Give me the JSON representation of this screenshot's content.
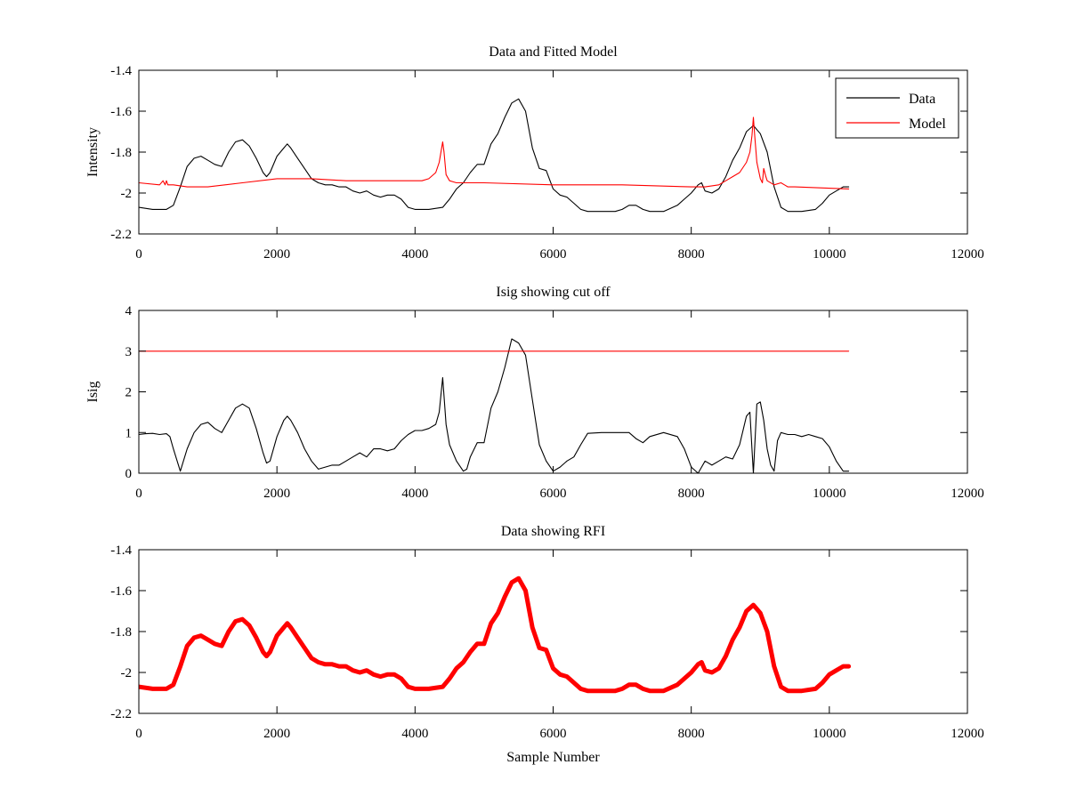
{
  "figure": {
    "background": "#ffffff"
  },
  "chart_data": [
    {
      "type": "line",
      "title": "Data and Fitted Model",
      "xlabel": "",
      "ylabel": "Intensity",
      "xlim": [
        0,
        12000
      ],
      "ylim": [
        -2.2,
        -1.4
      ],
      "xticks": [
        "0",
        "2000",
        "4000",
        "6000",
        "8000",
        "10000",
        "12000"
      ],
      "yticks": [
        "-1.4",
        "-1.6",
        "-1.8",
        "-2",
        "-2.2"
      ],
      "legend": {
        "placement": "top-right",
        "entries": [
          "Data",
          "Model"
        ]
      },
      "grid": false,
      "series": [
        {
          "name": "Data",
          "color": "#000000",
          "x": [
            0,
            200,
            400,
            500,
            600,
            700,
            800,
            900,
            1000,
            1100,
            1200,
            1300,
            1400,
            1500,
            1600,
            1700,
            1800,
            1850,
            1900,
            2000,
            2100,
            2150,
            2200,
            2300,
            2400,
            2500,
            2600,
            2700,
            2800,
            2900,
            3000,
            3100,
            3200,
            3300,
            3400,
            3500,
            3600,
            3700,
            3800,
            3900,
            4000,
            4200,
            4400,
            4500,
            4600,
            4700,
            4800,
            4900,
            5000,
            5100,
            5200,
            5300,
            5400,
            5500,
            5600,
            5700,
            5800,
            5900,
            6000,
            6100,
            6200,
            6300,
            6400,
            6500,
            6700,
            6900,
            7000,
            7100,
            7200,
            7300,
            7400,
            7600,
            7800,
            7900,
            8000,
            8100,
            8150,
            8200,
            8300,
            8400,
            8500,
            8600,
            8700,
            8800,
            8900,
            9000,
            9100,
            9200,
            9300,
            9400,
            9600,
            9800,
            9900,
            10000,
            10100,
            10200,
            10280
          ],
          "y": [
            -2.07,
            -2.08,
            -2.08,
            -2.06,
            -1.97,
            -1.87,
            -1.83,
            -1.82,
            -1.84,
            -1.86,
            -1.87,
            -1.8,
            -1.75,
            -1.74,
            -1.77,
            -1.83,
            -1.9,
            -1.92,
            -1.9,
            -1.82,
            -1.78,
            -1.76,
            -1.78,
            -1.83,
            -1.88,
            -1.93,
            -1.95,
            -1.96,
            -1.96,
            -1.97,
            -1.97,
            -1.99,
            -2.0,
            -1.99,
            -2.01,
            -2.02,
            -2.01,
            -2.01,
            -2.03,
            -2.07,
            -2.08,
            -2.08,
            -2.07,
            -2.03,
            -1.98,
            -1.95,
            -1.9,
            -1.86,
            -1.86,
            -1.76,
            -1.71,
            -1.63,
            -1.56,
            -1.54,
            -1.6,
            -1.78,
            -1.88,
            -1.89,
            -1.98,
            -2.01,
            -2.02,
            -2.05,
            -2.08,
            -2.09,
            -2.09,
            -2.09,
            -2.08,
            -2.06,
            -2.06,
            -2.08,
            -2.09,
            -2.09,
            -2.06,
            -2.03,
            -2.0,
            -1.96,
            -1.95,
            -1.99,
            -2.0,
            -1.98,
            -1.92,
            -1.84,
            -1.78,
            -1.7,
            -1.67,
            -1.71,
            -1.8,
            -1.97,
            -2.07,
            -2.09,
            -2.09,
            -2.08,
            -2.05,
            -2.01,
            -1.99,
            -1.97,
            -1.97
          ]
        },
        {
          "name": "Model",
          "color": "#ff0000",
          "x": [
            0,
            300,
            350,
            380,
            400,
            420,
            500,
            700,
            1000,
            1500,
            2000,
            2500,
            3000,
            3500,
            4000,
            4100,
            4200,
            4300,
            4350,
            4400,
            4420,
            4450,
            4500,
            4600,
            4700,
            4800,
            5000,
            6000,
            7000,
            8000,
            8200,
            8400,
            8500,
            8600,
            8700,
            8800,
            8850,
            8880,
            8900,
            8920,
            8950,
            9000,
            9030,
            9050,
            9080,
            9100,
            9200,
            9300,
            9350,
            9400,
            9500,
            10280
          ],
          "y": [
            -1.95,
            -1.96,
            -1.94,
            -1.96,
            -1.94,
            -1.96,
            -1.96,
            -1.97,
            -1.97,
            -1.95,
            -1.93,
            -1.93,
            -1.94,
            -1.94,
            -1.94,
            -1.94,
            -1.93,
            -1.9,
            -1.85,
            -1.75,
            -1.8,
            -1.91,
            -1.94,
            -1.95,
            -1.95,
            -1.95,
            -1.95,
            -1.96,
            -1.96,
            -1.97,
            -1.97,
            -1.96,
            -1.94,
            -1.92,
            -1.9,
            -1.85,
            -1.8,
            -1.72,
            -1.63,
            -1.72,
            -1.85,
            -1.93,
            -1.95,
            -1.88,
            -1.92,
            -1.94,
            -1.96,
            -1.95,
            -1.96,
            -1.97,
            -1.97,
            -1.98
          ]
        }
      ]
    },
    {
      "type": "line",
      "title": "Isig showing cut off",
      "xlabel": "",
      "ylabel": "Isig",
      "xlim": [
        0,
        12000
      ],
      "ylim": [
        0,
        4
      ],
      "xticks": [
        "0",
        "2000",
        "4000",
        "6000",
        "8000",
        "10000",
        "12000"
      ],
      "yticks": [
        "4",
        "3",
        "2",
        "1",
        "0"
      ],
      "grid": false,
      "series": [
        {
          "color": "#000000",
          "x": [
            0,
            100,
            200,
            300,
            400,
            450,
            500,
            600,
            700,
            800,
            900,
            1000,
            1100,
            1200,
            1300,
            1400,
            1500,
            1600,
            1700,
            1800,
            1850,
            1900,
            2000,
            2100,
            2150,
            2200,
            2300,
            2400,
            2500,
            2600,
            2700,
            2800,
            2900,
            3000,
            3100,
            3200,
            3300,
            3400,
            3500,
            3600,
            3700,
            3800,
            3900,
            4000,
            4100,
            4200,
            4300,
            4350,
            4400,
            4450,
            4500,
            4600,
            4700,
            4750,
            4800,
            4900,
            5000,
            5100,
            5200,
            5300,
            5400,
            5500,
            5600,
            5700,
            5800,
            5900,
            6000,
            6100,
            6200,
            6300,
            6400,
            6500,
            6700,
            6900,
            7000,
            7100,
            7200,
            7300,
            7400,
            7600,
            7800,
            7900,
            8000,
            8100,
            8150,
            8200,
            8300,
            8400,
            8500,
            8600,
            8700,
            8800,
            8850,
            8880,
            8900,
            8950,
            9000,
            9050,
            9100,
            9150,
            9200,
            9250,
            9300,
            9400,
            9500,
            9600,
            9700,
            9800,
            9900,
            10000,
            10100,
            10200,
            10280
          ],
          "y": [
            0.95,
            0.97,
            0.98,
            0.95,
            0.97,
            0.9,
            0.6,
            0.05,
            0.6,
            1.0,
            1.2,
            1.25,
            1.1,
            1.0,
            1.3,
            1.6,
            1.7,
            1.6,
            1.1,
            0.5,
            0.25,
            0.3,
            0.9,
            1.3,
            1.4,
            1.3,
            1.0,
            0.6,
            0.3,
            0.1,
            0.15,
            0.2,
            0.2,
            0.3,
            0.4,
            0.5,
            0.4,
            0.6,
            0.6,
            0.55,
            0.6,
            0.8,
            0.95,
            1.05,
            1.05,
            1.1,
            1.2,
            1.5,
            2.35,
            1.2,
            0.7,
            0.3,
            0.05,
            0.1,
            0.4,
            0.75,
            0.75,
            1.6,
            2.0,
            2.6,
            3.3,
            3.2,
            2.9,
            1.8,
            0.7,
            0.3,
            0.05,
            0.15,
            0.3,
            0.4,
            0.7,
            0.98,
            1.0,
            1.0,
            1.0,
            1.0,
            0.85,
            0.75,
            0.9,
            1.0,
            0.9,
            0.6,
            0.15,
            0.0,
            0.15,
            0.3,
            0.2,
            0.3,
            0.4,
            0.35,
            0.7,
            1.4,
            1.5,
            0.6,
            0.0,
            1.7,
            1.75,
            1.3,
            0.6,
            0.2,
            0.05,
            0.8,
            1.0,
            0.95,
            0.95,
            0.9,
            0.95,
            0.9,
            0.85,
            0.65,
            0.3,
            0.05,
            0.05
          ]
        },
        {
          "color": "#ff0000",
          "x": [
            0,
            10280
          ],
          "y": [
            3.0,
            3.0
          ]
        }
      ]
    },
    {
      "type": "line",
      "title": "Data showing RFI",
      "xlabel": "Sample Number",
      "ylabel": "",
      "xlim": [
        0,
        12000
      ],
      "ylim": [
        -2.2,
        -1.4
      ],
      "xticks": [
        "0",
        "2000",
        "4000",
        "6000",
        "8000",
        "10000",
        "12000"
      ],
      "yticks": [
        "-1.4",
        "-1.6",
        "-1.8",
        "-2",
        "-2.2"
      ],
      "grid": false,
      "series": [
        {
          "color": "#ff0000",
          "x": [
            0,
            200,
            400,
            500,
            600,
            700,
            800,
            900,
            1000,
            1100,
            1200,
            1300,
            1400,
            1500,
            1600,
            1700,
            1800,
            1850,
            1900,
            2000,
            2100,
            2150,
            2200,
            2300,
            2400,
            2500,
            2600,
            2700,
            2800,
            2900,
            3000,
            3100,
            3200,
            3300,
            3400,
            3500,
            3600,
            3700,
            3800,
            3900,
            4000,
            4200,
            4400,
            4500,
            4600,
            4700,
            4800,
            4900,
            5000,
            5100,
            5200,
            5300,
            5400,
            5500,
            5600,
            5700,
            5800,
            5900,
            6000,
            6100,
            6200,
            6300,
            6400,
            6500,
            6700,
            6900,
            7000,
            7100,
            7200,
            7300,
            7400,
            7600,
            7800,
            7900,
            8000,
            8100,
            8150,
            8200,
            8300,
            8400,
            8500,
            8600,
            8700,
            8800,
            8900,
            9000,
            9100,
            9200,
            9300,
            9400,
            9600,
            9800,
            9900,
            10000,
            10100,
            10200,
            10280
          ],
          "y": [
            -2.07,
            -2.08,
            -2.08,
            -2.06,
            -1.97,
            -1.87,
            -1.83,
            -1.82,
            -1.84,
            -1.86,
            -1.87,
            -1.8,
            -1.75,
            -1.74,
            -1.77,
            -1.83,
            -1.9,
            -1.92,
            -1.9,
            -1.82,
            -1.78,
            -1.76,
            -1.78,
            -1.83,
            -1.88,
            -1.93,
            -1.95,
            -1.96,
            -1.96,
            -1.97,
            -1.97,
            -1.99,
            -2.0,
            -1.99,
            -2.01,
            -2.02,
            -2.01,
            -2.01,
            -2.03,
            -2.07,
            -2.08,
            -2.08,
            -2.07,
            -2.03,
            -1.98,
            -1.95,
            -1.9,
            -1.86,
            -1.86,
            -1.76,
            -1.71,
            -1.63,
            -1.56,
            -1.54,
            -1.6,
            -1.78,
            -1.88,
            -1.89,
            -1.98,
            -2.01,
            -2.02,
            -2.05,
            -2.08,
            -2.09,
            -2.09,
            -2.09,
            -2.08,
            -2.06,
            -2.06,
            -2.08,
            -2.09,
            -2.09,
            -2.06,
            -2.03,
            -2.0,
            -1.96,
            -1.95,
            -1.99,
            -2.0,
            -1.98,
            -1.92,
            -1.84,
            -1.78,
            -1.7,
            -1.67,
            -1.71,
            -1.8,
            -1.97,
            -2.07,
            -2.09,
            -2.09,
            -2.08,
            -2.05,
            -2.01,
            -1.99,
            -1.97,
            -1.97
          ]
        }
      ]
    }
  ]
}
